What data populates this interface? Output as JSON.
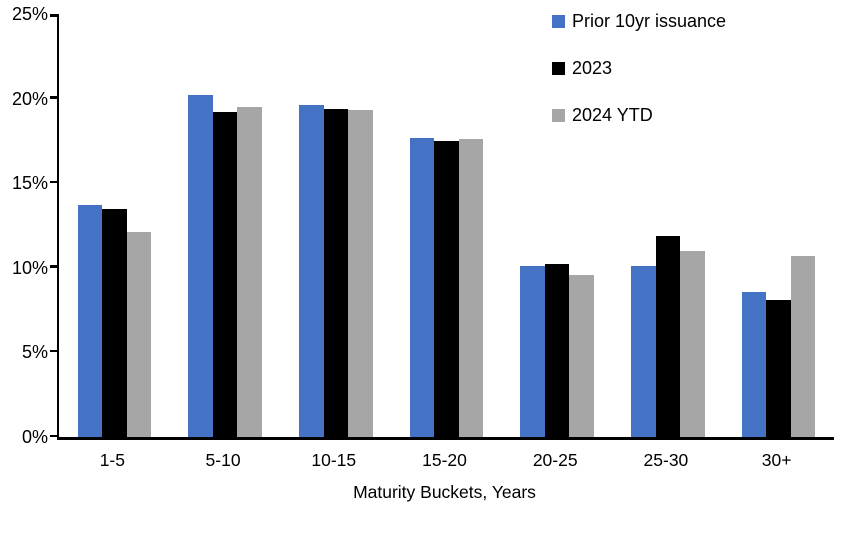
{
  "chart_data": {
    "type": "bar",
    "categories": [
      "1-5",
      "5-10",
      "10-15",
      "15-20",
      "20-25",
      "25-30",
      "30+"
    ],
    "series": [
      {
        "name": "Prior 10yr issuance",
        "color": "#4472C4",
        "values": [
          13.7,
          20.2,
          19.6,
          17.7,
          10.1,
          10.1,
          8.6
        ]
      },
      {
        "name": "2023",
        "color": "#000000",
        "values": [
          13.5,
          19.2,
          19.4,
          17.5,
          10.2,
          11.9,
          8.1
        ]
      },
      {
        "name": "2024 YTD",
        "color": "#A6A6A6",
        "values": [
          12.1,
          19.5,
          19.3,
          17.6,
          9.6,
          11.0,
          10.7
        ]
      }
    ],
    "title": "",
    "xlabel": "Maturity Buckets, Years",
    "ylabel": "",
    "ylim": [
      0,
      25
    ],
    "ytick_step": 5,
    "ytick_labels": [
      "0%",
      "5%",
      "10%",
      "15%",
      "20%",
      "25%"
    ],
    "legend_position": "top-right",
    "grid": false,
    "axis_color": "#000000"
  }
}
